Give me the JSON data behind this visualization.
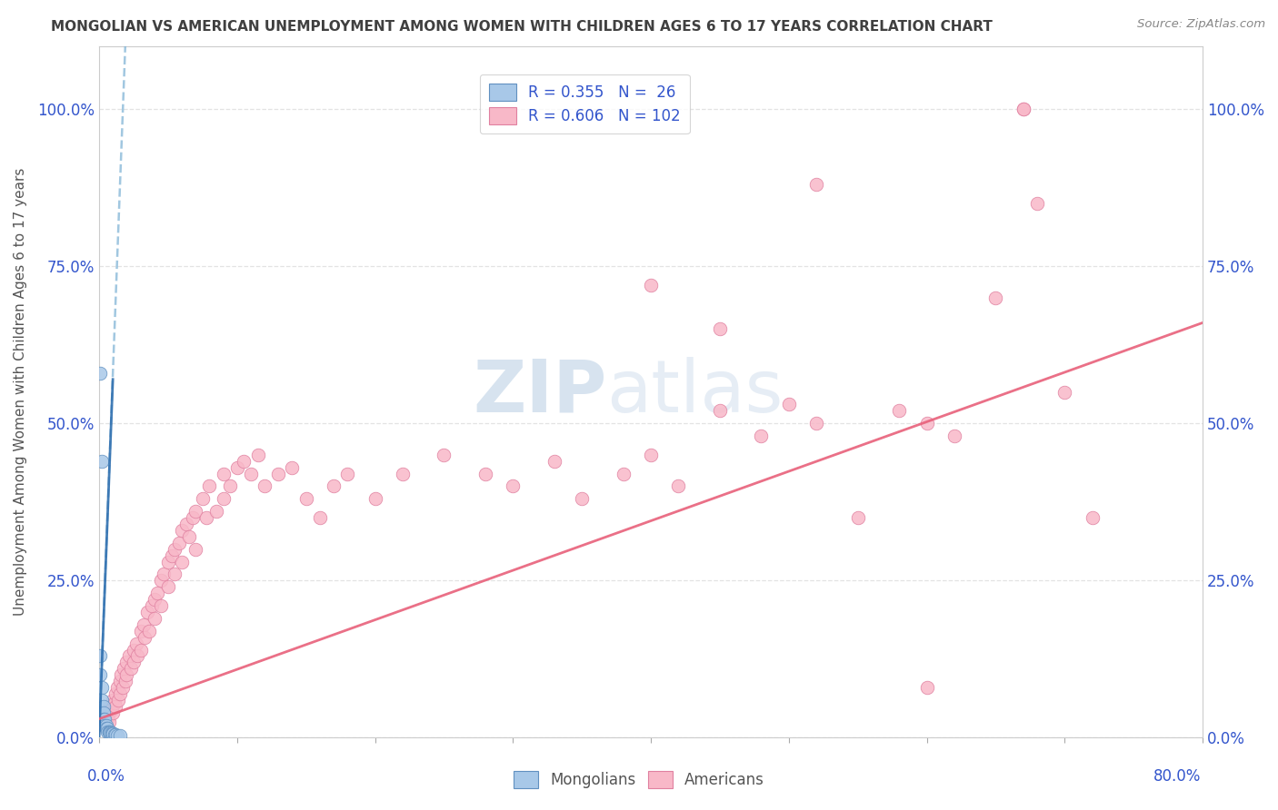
{
  "title": "MONGOLIAN VS AMERICAN UNEMPLOYMENT AMONG WOMEN WITH CHILDREN AGES 6 TO 17 YEARS CORRELATION CHART",
  "source": "Source: ZipAtlas.com",
  "ylabel": "Unemployment Among Women with Children Ages 6 to 17 years",
  "ytick_labels": [
    "0.0%",
    "25.0%",
    "50.0%",
    "75.0%",
    "100.0%"
  ],
  "ytick_values": [
    0,
    0.25,
    0.5,
    0.75,
    1.0
  ],
  "xlim": [
    0,
    0.8
  ],
  "ylim": [
    0,
    1.1
  ],
  "watermark_zip": "ZIP",
  "watermark_atlas": "atlas",
  "mongolian_scatter_color": "#a8c8e8",
  "mongolian_edge_color": "#6090c0",
  "american_scatter_color": "#f8b8c8",
  "american_edge_color": "#e080a0",
  "mongolian_line_color": "#7ab0d4",
  "american_line_color": "#e8607a",
  "background_color": "#ffffff",
  "grid_color": "#e0e0e0",
  "title_color": "#404040",
  "tick_label_color": "#3355cc",
  "ylabel_color": "#555555",
  "legend_label_color": "#3355cc",
  "source_color": "#888888",
  "mongolian_scatter_x": [
    0.001,
    0.001,
    0.002,
    0.002,
    0.003,
    0.003,
    0.003,
    0.004,
    0.004,
    0.005,
    0.005,
    0.006,
    0.006,
    0.007,
    0.007,
    0.008,
    0.008,
    0.009,
    0.009,
    0.01,
    0.011,
    0.012,
    0.013,
    0.015,
    0.001,
    0.002
  ],
  "mongolian_scatter_y": [
    0.13,
    0.1,
    0.08,
    0.06,
    0.05,
    0.04,
    0.03,
    0.03,
    0.02,
    0.02,
    0.015,
    0.015,
    0.01,
    0.01,
    0.01,
    0.01,
    0.008,
    0.008,
    0.006,
    0.006,
    0.005,
    0.005,
    0.004,
    0.003,
    0.58,
    0.44
  ],
  "american_scatter_x": [
    0.003,
    0.004,
    0.005,
    0.005,
    0.006,
    0.007,
    0.007,
    0.008,
    0.009,
    0.01,
    0.01,
    0.011,
    0.012,
    0.012,
    0.013,
    0.014,
    0.015,
    0.015,
    0.016,
    0.017,
    0.018,
    0.019,
    0.02,
    0.02,
    0.022,
    0.023,
    0.025,
    0.025,
    0.027,
    0.028,
    0.03,
    0.03,
    0.032,
    0.033,
    0.035,
    0.036,
    0.038,
    0.04,
    0.04,
    0.042,
    0.045,
    0.045,
    0.047,
    0.05,
    0.05,
    0.053,
    0.055,
    0.055,
    0.058,
    0.06,
    0.06,
    0.063,
    0.065,
    0.068,
    0.07,
    0.07,
    0.075,
    0.078,
    0.08,
    0.085,
    0.09,
    0.09,
    0.095,
    0.1,
    0.105,
    0.11,
    0.115,
    0.12,
    0.13,
    0.14,
    0.15,
    0.16,
    0.17,
    0.18,
    0.2,
    0.22,
    0.25,
    0.28,
    0.3,
    0.33,
    0.35,
    0.38,
    0.4,
    0.42,
    0.45,
    0.48,
    0.5,
    0.52,
    0.55,
    0.58,
    0.6,
    0.62,
    0.65,
    0.67,
    0.67,
    0.68,
    0.7,
    0.45,
    0.52,
    0.6,
    0.4,
    0.72
  ],
  "american_scatter_y": [
    0.02,
    0.025,
    0.03,
    0.035,
    0.03,
    0.04,
    0.025,
    0.05,
    0.045,
    0.06,
    0.04,
    0.055,
    0.07,
    0.05,
    0.08,
    0.06,
    0.09,
    0.07,
    0.1,
    0.08,
    0.11,
    0.09,
    0.12,
    0.1,
    0.13,
    0.11,
    0.14,
    0.12,
    0.15,
    0.13,
    0.17,
    0.14,
    0.18,
    0.16,
    0.2,
    0.17,
    0.21,
    0.22,
    0.19,
    0.23,
    0.25,
    0.21,
    0.26,
    0.28,
    0.24,
    0.29,
    0.3,
    0.26,
    0.31,
    0.33,
    0.28,
    0.34,
    0.32,
    0.35,
    0.36,
    0.3,
    0.38,
    0.35,
    0.4,
    0.36,
    0.42,
    0.38,
    0.4,
    0.43,
    0.44,
    0.42,
    0.45,
    0.4,
    0.42,
    0.43,
    0.38,
    0.35,
    0.4,
    0.42,
    0.38,
    0.42,
    0.45,
    0.42,
    0.4,
    0.44,
    0.38,
    0.42,
    0.45,
    0.4,
    0.52,
    0.48,
    0.53,
    0.5,
    0.35,
    0.52,
    0.5,
    0.48,
    0.7,
    1.0,
    1.0,
    0.85,
    0.55,
    0.65,
    0.88,
    0.08,
    0.72,
    0.35
  ],
  "mongolian_line_x": [
    0.0,
    0.019
  ],
  "mongolian_line_y": [
    0.0,
    1.1
  ],
  "american_line_x": [
    0.0,
    0.8
  ],
  "american_line_y": [
    0.03,
    0.66
  ]
}
